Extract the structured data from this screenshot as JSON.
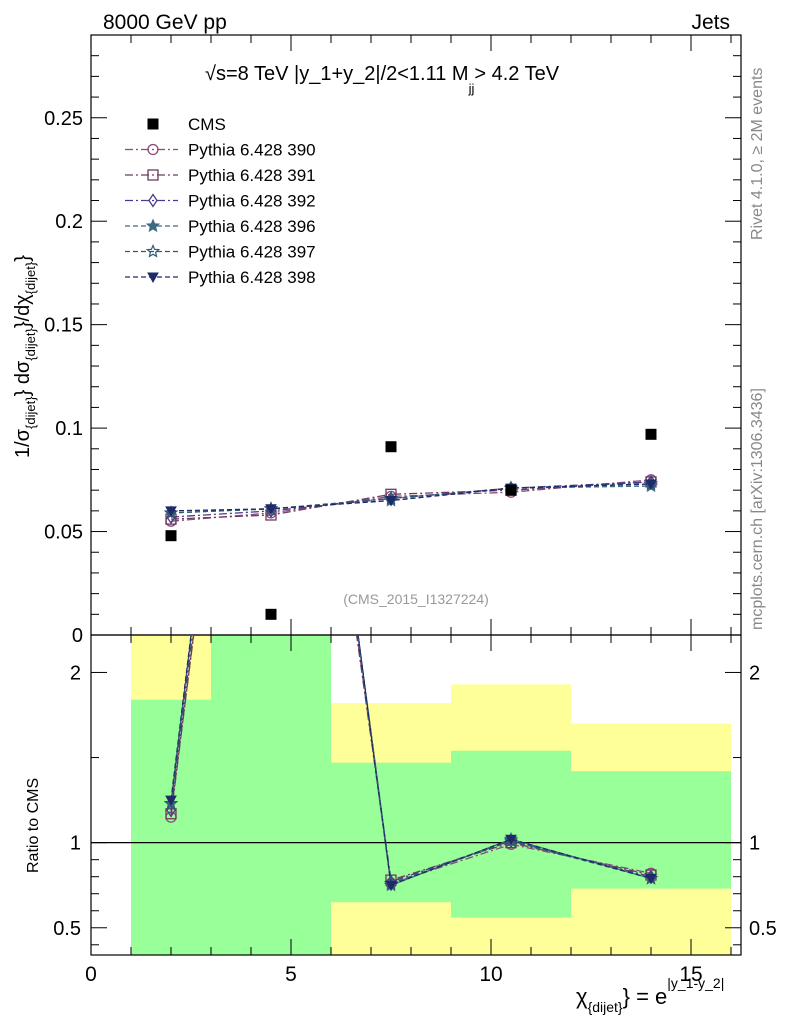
{
  "header": {
    "left_label": "8000 GeV pp",
    "right_label": "Jets",
    "side_top": "Rivet 4.1.0, ≥ 2M events",
    "side_bottom": "mcplots.cern.ch [arXiv:1306.3436]",
    "watermark": "(CMS_2015_I1327224)"
  },
  "colors": {
    "band_inner": "#99ff99",
    "band_outer": "#ffff99",
    "data_marker": "#000000",
    "side_text": "#888888"
  },
  "chart_data": [
    {
      "type": "scatter",
      "panel": "main",
      "title_parts": {
        "sqrt": "√",
        "s_eq": "s=8 TeV |y_1+y_2|/2<1.11 M",
        "sub": "jj",
        "tail": "> 4.2 TeV"
      },
      "ylabel": "1/σ_{dijet} dσ_{dijet}/dχ_{dijet}",
      "ylabel_parts": {
        "a": "1/σ",
        "a_sub": "{dijet}",
        "b": "} dσ",
        "b_sub": "{dijet}",
        "c": "}/dχ",
        "c_sub": "{dijet}",
        "d": "}"
      },
      "xlim": [
        0,
        16.25
      ],
      "ylim": [
        0,
        0.29
      ],
      "yticks": [
        0,
        0.05,
        0.1,
        0.15,
        0.2,
        0.25
      ],
      "ytick_labels": [
        "0",
        "0.05",
        "0.1",
        "0.15",
        "0.2",
        "0.25"
      ],
      "x": [
        2.0,
        4.5,
        7.5,
        10.5,
        14.0
      ],
      "data": {
        "name": "CMS",
        "values": [
          0.048,
          0.01,
          0.091,
          0.07,
          0.097
        ]
      },
      "series": [
        {
          "name": "Pythia 6.428 390",
          "color": "#8a4a7a",
          "marker": "circle",
          "dash": "8,3,2,3",
          "values": [
            0.055,
            0.059,
            0.067,
            0.069,
            0.075
          ]
        },
        {
          "name": "Pythia 6.428 391",
          "color": "#6e3a5e",
          "marker": "square",
          "dash": "8,3,2,3",
          "values": [
            0.056,
            0.058,
            0.068,
            0.07,
            0.074
          ]
        },
        {
          "name": "Pythia 6.428 392",
          "color": "#4a3a8a",
          "marker": "diamond",
          "dash": "8,3,2,3",
          "values": [
            0.057,
            0.06,
            0.066,
            0.071,
            0.074
          ]
        },
        {
          "name": "Pythia 6.428 396",
          "color": "#3d6a80",
          "marker": "star-filled",
          "dash": "5,3",
          "values": [
            0.059,
            0.061,
            0.065,
            0.071,
            0.072
          ]
        },
        {
          "name": "Pythia 6.428 397",
          "color": "#2f5a70",
          "marker": "star-open",
          "dash": "5,3",
          "values": [
            0.059,
            0.061,
            0.066,
            0.071,
            0.073
          ]
        },
        {
          "name": "Pythia 6.428 398",
          "color": "#1e2a6a",
          "marker": "triangle-down",
          "dash": "5,3",
          "values": [
            0.06,
            0.061,
            0.065,
            0.071,
            0.073
          ]
        }
      ]
    },
    {
      "type": "line",
      "panel": "ratio",
      "ylabel": "Ratio to CMS",
      "xlabel_parts": {
        "chi": "χ",
        "chi_sub": "{dijet}",
        "eq": "} = e",
        "sup": "|y_1-y_2|"
      },
      "xlim": [
        0,
        16.25
      ],
      "ylim": [
        0.34,
        2.22
      ],
      "yticks": [
        0.5,
        1,
        2
      ],
      "ytick_labels": [
        "0.5",
        "1",
        "2"
      ],
      "xticks": [
        0,
        5,
        10,
        15
      ],
      "xtick_labels": [
        "0",
        "5",
        "10",
        "15"
      ],
      "bins": [
        {
          "lo": 1,
          "hi": 3,
          "inner": [
            0.34,
            1.84
          ],
          "outer": [
            0.34,
            2.22
          ]
        },
        {
          "lo": 3,
          "hi": 6,
          "inner": [
            0.34,
            2.22
          ],
          "outer": [
            0.34,
            2.22
          ]
        },
        {
          "lo": 6,
          "hi": 9,
          "inner": [
            0.65,
            1.47
          ],
          "outer": [
            0.34,
            1.82
          ]
        },
        {
          "lo": 9,
          "hi": 12,
          "inner": [
            0.56,
            1.54
          ],
          "outer": [
            0.34,
            1.93
          ]
        },
        {
          "lo": 12,
          "hi": 16,
          "inner": [
            0.73,
            1.42
          ],
          "outer": [
            0.34,
            1.7
          ]
        }
      ],
      "x": [
        2.0,
        4.5,
        7.5,
        10.5,
        14.0
      ],
      "series_values": [
        [
          1.15,
          5.9,
          0.76,
          0.99,
          0.82
        ],
        [
          1.17,
          5.8,
          0.78,
          1.0,
          0.81
        ],
        [
          1.19,
          6.0,
          0.77,
          1.01,
          0.8
        ],
        [
          1.23,
          6.1,
          0.75,
          1.02,
          0.79
        ],
        [
          1.23,
          6.1,
          0.76,
          1.01,
          0.79
        ],
        [
          1.25,
          6.1,
          0.75,
          1.02,
          0.79
        ]
      ]
    }
  ]
}
